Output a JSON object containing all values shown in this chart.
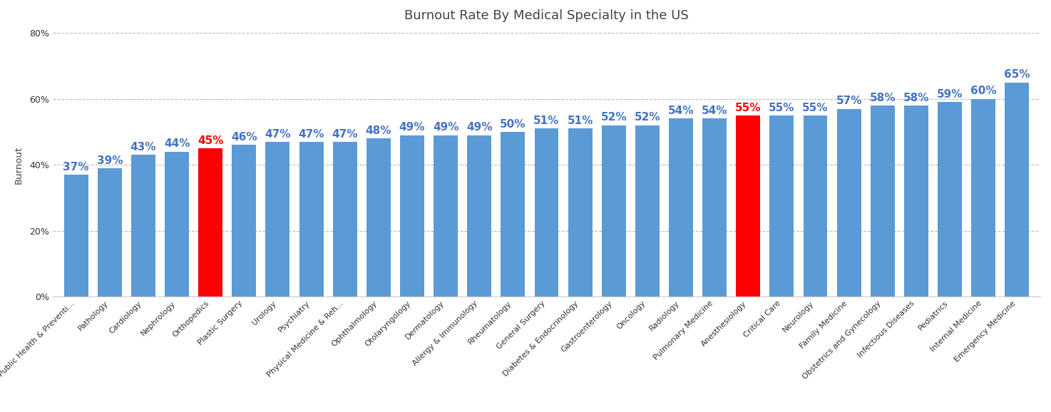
{
  "title": "Burnout Rate By Medical Specialty in the US",
  "ylabel": "Burnout",
  "categories": [
    "Public Health & Preventi...",
    "Pathology",
    "Cardiology",
    "Nephrology",
    "Orthopedics",
    "Plastic Surgery",
    "Urology",
    "Psychiatry",
    "Physical Medicine & Reh...",
    "Ophthalmology",
    "Otolaryngology",
    "Dermatology",
    "Allergy & Immunology",
    "Rheumatology",
    "General Surgery",
    "Diabetes & Endocrinology",
    "Gastroenterology",
    "Oncology",
    "Radiology",
    "Pulmonary Medicine",
    "Anesthesiology",
    "Critical Care",
    "Neurology",
    "Family Medicine",
    "Obstetrics and Gynecology",
    "Infectious Diseases",
    "Pediatrics",
    "Internal Medicine",
    "Emergency Medicine"
  ],
  "values": [
    37,
    39,
    43,
    44,
    45,
    46,
    47,
    47,
    47,
    48,
    49,
    49,
    49,
    50,
    51,
    51,
    52,
    52,
    54,
    54,
    55,
    55,
    55,
    57,
    58,
    58,
    59,
    60,
    65
  ],
  "bar_colors": [
    "#5b9bd5",
    "#5b9bd5",
    "#5b9bd5",
    "#5b9bd5",
    "#ff0000",
    "#5b9bd5",
    "#5b9bd5",
    "#5b9bd5",
    "#5b9bd5",
    "#5b9bd5",
    "#5b9bd5",
    "#5b9bd5",
    "#5b9bd5",
    "#5b9bd5",
    "#5b9bd5",
    "#5b9bd5",
    "#5b9bd5",
    "#5b9bd5",
    "#5b9bd5",
    "#5b9bd5",
    "#ff0000",
    "#5b9bd5",
    "#5b9bd5",
    "#5b9bd5",
    "#5b9bd5",
    "#5b9bd5",
    "#5b9bd5",
    "#5b9bd5",
    "#5b9bd5"
  ],
  "label_colors": [
    "#4472c4",
    "#4472c4",
    "#4472c4",
    "#4472c4",
    "#ff0000",
    "#4472c4",
    "#4472c4",
    "#4472c4",
    "#4472c4",
    "#4472c4",
    "#4472c4",
    "#4472c4",
    "#4472c4",
    "#4472c4",
    "#4472c4",
    "#4472c4",
    "#4472c4",
    "#4472c4",
    "#4472c4",
    "#4472c4",
    "#ff0000",
    "#4472c4",
    "#4472c4",
    "#4472c4",
    "#4472c4",
    "#4472c4",
    "#4472c4",
    "#4472c4",
    "#4472c4"
  ],
  "ylim": [
    0,
    80
  ],
  "yticks": [
    0,
    20,
    40,
    60,
    80
  ],
  "background_color": "#ffffff",
  "grid_color": "#bbbbbb",
  "title_fontsize": 13,
  "label_fontsize": 11,
  "axis_label_color": "#444444",
  "tick_label_color": "#333333"
}
